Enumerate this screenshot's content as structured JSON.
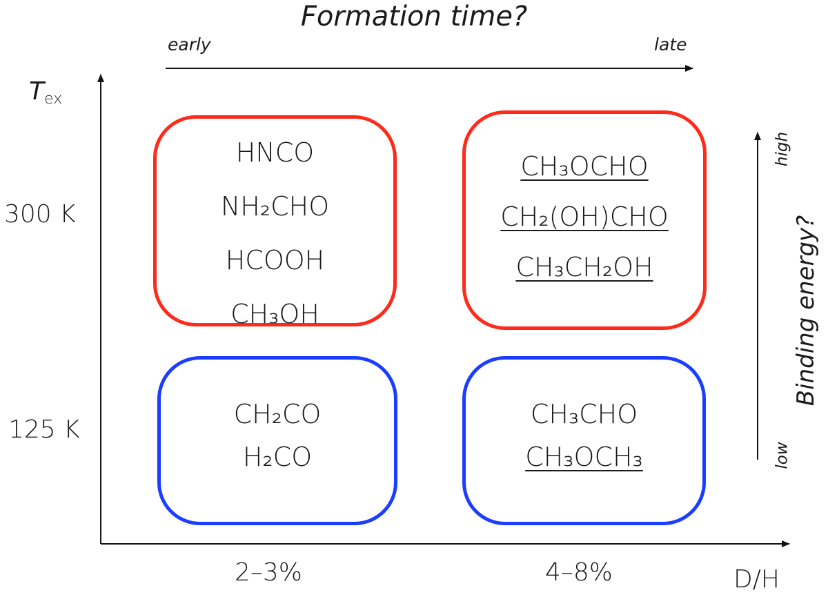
{
  "title": "Formation time?",
  "top_axis": {
    "left_label": "early",
    "right_label": "late"
  },
  "y_axis": {
    "symbol": "T",
    "subscript": "ex",
    "ticks": [
      "300 K",
      "125 K"
    ]
  },
  "x_axis": {
    "label": "D/H",
    "ticks": [
      "2–3%",
      "4–8%"
    ]
  },
  "right_axis": {
    "label": "Binding energy?",
    "low_label": "low",
    "high_label": "high"
  },
  "colors": {
    "hot": "#ff2a1a",
    "cold": "#1a3dff",
    "axis": "#111111"
  },
  "boxes": [
    {
      "id": "hot-early",
      "color": "hot",
      "molecules": [
        {
          "text": "HNCO",
          "underline": false
        },
        {
          "text": "NH₂CHO",
          "underline": false
        },
        {
          "text": "HCOOH",
          "underline": false
        },
        {
          "text": "CH₃OH",
          "underline": false
        }
      ]
    },
    {
      "id": "hot-late",
      "color": "hot",
      "molecules": [
        {
          "text": "CH₃OCHO",
          "underline": true
        },
        {
          "text": "CH₂(OH)CHO",
          "underline": true
        },
        {
          "text": "CH₃CH₂OH",
          "underline": true
        }
      ]
    },
    {
      "id": "cold-early",
      "color": "cold",
      "molecules": [
        {
          "text": "CH₂CO",
          "underline": false
        },
        {
          "text": "H₂CO",
          "underline": false
        }
      ]
    },
    {
      "id": "cold-late",
      "color": "cold",
      "molecules": [
        {
          "text": "CH₃CHO",
          "underline": false
        },
        {
          "text": "CH₃OCH₃",
          "underline": true
        }
      ]
    }
  ]
}
